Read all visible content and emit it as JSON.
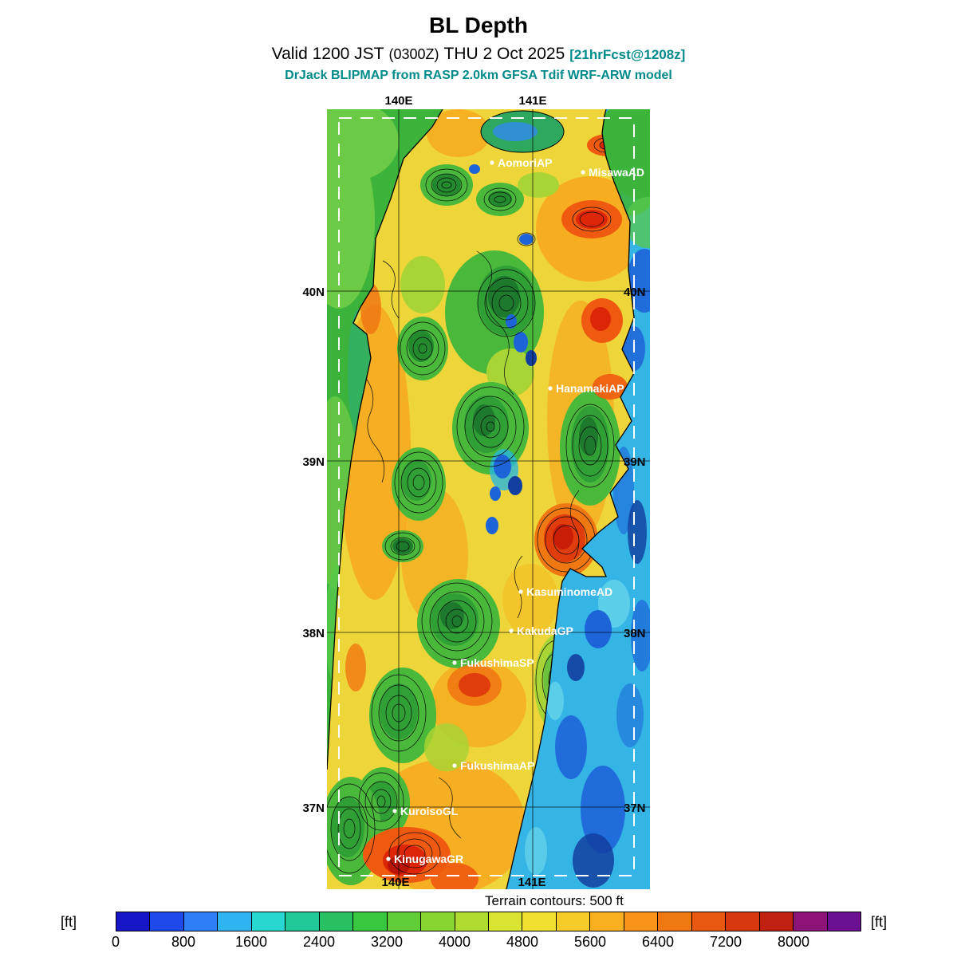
{
  "header": {
    "title": "BL Depth",
    "valid_prefix": "Valid 1200 JST",
    "valid_paren": "(0300Z)",
    "valid_suffix": "THU 2 Oct 2025",
    "forecast_tag": "[21hrFcst@1208z]",
    "model_line": "DrJack BLIPMAP from RASP 2.0km GFSA Tdif WRF-ARW model",
    "accent_color": "#008b8b"
  },
  "map": {
    "coord_labels": {
      "top_lon_1": "140E",
      "top_lon_2": "141E",
      "bottom_lon_1": "140E",
      "bottom_lon_2": "141E",
      "left_lat_1": "40N",
      "left_lat_2": "39N",
      "left_lat_3": "38N",
      "left_lat_4": "37N",
      "right_lat_1": "40N",
      "right_lat_2": "39N",
      "right_lat_3": "38N",
      "right_lat_4": "37N"
    },
    "stations": [
      {
        "label": "AomoriAP"
      },
      {
        "label": "MisawaAD"
      },
      {
        "label": "HanamakiAP"
      },
      {
        "label": "KasuminomeAD"
      },
      {
        "label": "KakudaGP"
      },
      {
        "label": "FukushimaSP"
      },
      {
        "label": "FukushimaAP"
      },
      {
        "label": "KuroisoGL"
      },
      {
        "label": "KinugawaGR"
      }
    ]
  },
  "footer": {
    "terrain_note": "Terrain contours: 500 ft",
    "colorbar": {
      "unit_left": "[ft]",
      "unit_right": "[ft]",
      "tick_labels": [
        "0",
        "800",
        "1600",
        "2400",
        "3200",
        "4000",
        "4800",
        "5600",
        "6400",
        "7200",
        "8000"
      ],
      "segment_step_ft": 400,
      "segment_colors": [
        "#1616c8",
        "#1e48e8",
        "#2e7ef8",
        "#30b4f0",
        "#28d8d0",
        "#20c898",
        "#28c060",
        "#38c840",
        "#60cc38",
        "#88d430",
        "#b0dc30",
        "#d8e430",
        "#f0e030",
        "#f8cc28",
        "#f8b020",
        "#f89418",
        "#f07810",
        "#e85810",
        "#d83810",
        "#c02010",
        "#8c1478",
        "#6a1090"
      ]
    }
  }
}
